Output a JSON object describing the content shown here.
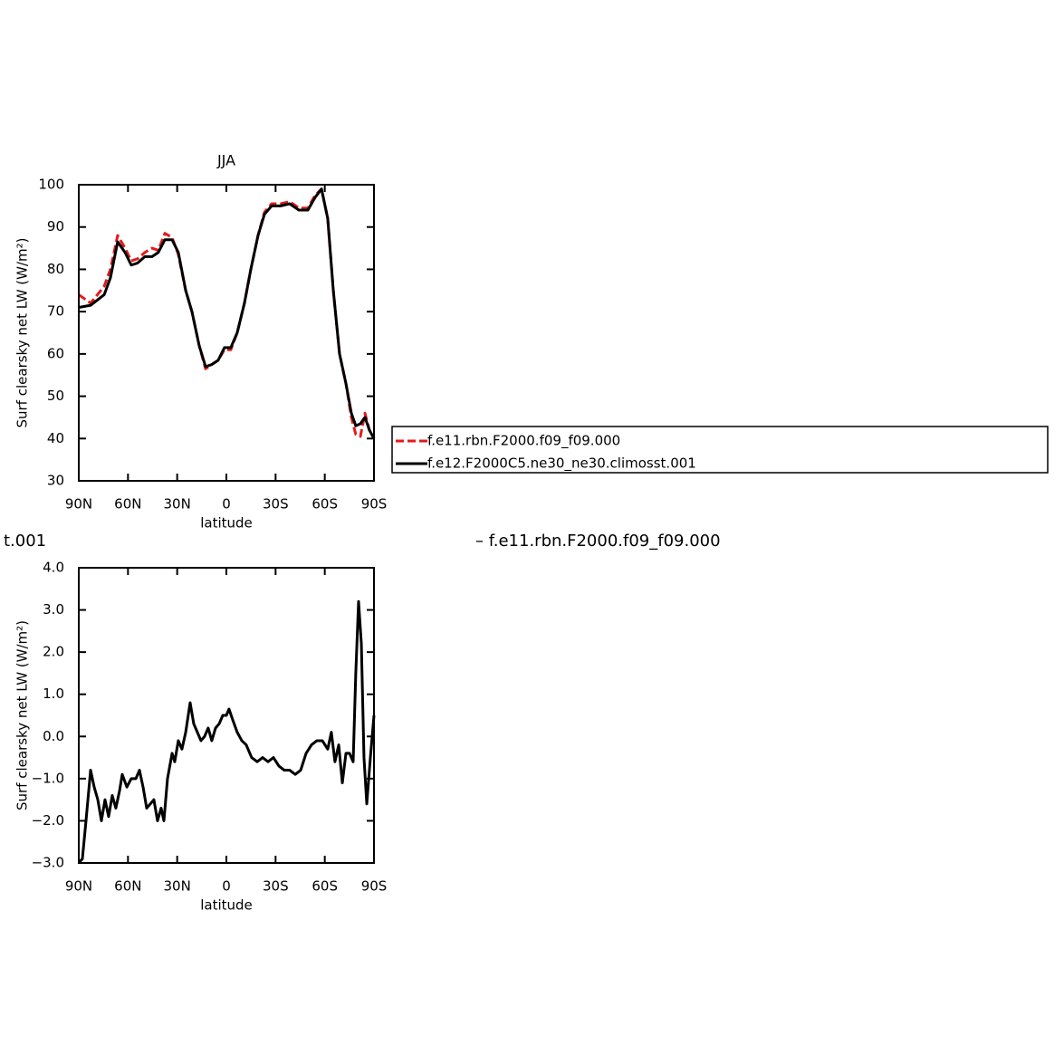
{
  "chart_data": [
    {
      "type": "line",
      "title": "JJA",
      "xlabel": "latitude",
      "ylabel": "Surf clearsky net LW (W/m²)",
      "xlim": [
        90,
        -90
      ],
      "ylim": [
        30,
        100
      ],
      "xticks": [
        {
          "value": 90,
          "label": "90N"
        },
        {
          "value": 60,
          "label": "60N"
        },
        {
          "value": 30,
          "label": "30N"
        },
        0,
        {
          "value": -30,
          "label": "30S"
        },
        {
          "value": -60,
          "label": "60S"
        },
        {
          "value": -90,
          "label": "90S"
        }
      ],
      "yticks": [
        30,
        40,
        50,
        60,
        70,
        80,
        90,
        100
      ],
      "x": [
        90,
        82.8,
        74.5,
        70.7,
        66.3,
        61.8,
        58.0,
        54.1,
        49.7,
        45.3,
        41.5,
        37.5,
        33.1,
        29.3,
        24.8,
        21.0,
        16.6,
        12.7,
        8.9,
        5.0,
        1.2,
        -2.7,
        -6.6,
        -11.0,
        -14.9,
        -19.3,
        -23.2,
        -27.6,
        -33.1,
        -38.6,
        -44.2,
        -49.7,
        -54.1,
        -58.0,
        -61.8,
        -65.2,
        -69.0,
        -72.9,
        -76.2,
        -78.9,
        -81.7,
        -84.5,
        -87.2,
        -90
      ],
      "series": [
        {
          "name": "f.e11.rbn.F2000.f09_f09.000",
          "color": "#e41a1c",
          "dash": true,
          "values": [
            74,
            72,
            76,
            80,
            88,
            85,
            82,
            82.5,
            84,
            85,
            84.5,
            88.5,
            87.5,
            83.5,
            75,
            70,
            62,
            56.5,
            57.5,
            58.5,
            61,
            61,
            65,
            72,
            80,
            88,
            93.5,
            95.5,
            95.5,
            96,
            94.5,
            94.5,
            97.5,
            99,
            92,
            75,
            60,
            53,
            45,
            41,
            40.5,
            46,
            42,
            40
          ]
        },
        {
          "name": "f.e12.F2000C5.ne30_ne30.climosst.001",
          "color": "#000000",
          "dash": false,
          "values": [
            71,
            71.5,
            74,
            78,
            86.5,
            84,
            81,
            81.5,
            83,
            83,
            84,
            87,
            87,
            84,
            75,
            70,
            62,
            57,
            57.5,
            58.5,
            61.5,
            61.5,
            65,
            72,
            80,
            88,
            93,
            95,
            95,
            95.5,
            94,
            94,
            97,
            99,
            92,
            75,
            60,
            53,
            46,
            43,
            43.5,
            45,
            42,
            40
          ]
        }
      ]
    },
    {
      "type": "line",
      "xlabel": "latitude",
      "ylabel": "Surf clearsky net LW (W/m²)",
      "annotations": [
        "t.001",
        "– f.e11.rbn.F2000.f09_f09.000"
      ],
      "xlim": [
        90,
        -90
      ],
      "ylim": [
        -3,
        4
      ],
      "xticks": [
        {
          "value": 90,
          "label": "90N"
        },
        {
          "value": 60,
          "label": "60N"
        },
        {
          "value": 30,
          "label": "30N"
        },
        0,
        {
          "value": -30,
          "label": "30S"
        },
        {
          "value": -60,
          "label": "60S"
        },
        {
          "value": -90,
          "label": "90S"
        }
      ],
      "yticks": [
        {
          "value": -3,
          "label": "−3.0"
        },
        {
          "value": -2,
          "label": "−2.0"
        },
        {
          "value": -1,
          "label": "−1.0"
        },
        {
          "value": 0,
          "label": "0.0"
        },
        {
          "value": 1,
          "label": "1.0"
        },
        {
          "value": 2,
          "label": "2.0"
        },
        {
          "value": 3,
          "label": "3.0"
        },
        {
          "value": 4,
          "label": "4.0"
        }
      ],
      "x": [
        90,
        87.8,
        85.6,
        82.8,
        80.6,
        78.4,
        76.2,
        74.0,
        71.8,
        69.6,
        67.4,
        65.2,
        63.5,
        60.7,
        58.0,
        55.2,
        53.0,
        50.8,
        48.6,
        46.4,
        44.2,
        42.0,
        39.8,
        38.1,
        35.9,
        33.1,
        31.5,
        29.3,
        27.1,
        24.8,
        22.1,
        19.9,
        17.7,
        15.5,
        13.3,
        11.1,
        8.9,
        6.6,
        4.4,
        2.2,
        0.0,
        -1.6,
        -3.8,
        -6.6,
        -9.4,
        -12.1,
        -15.4,
        -18.8,
        -22.1,
        -25.4,
        -28.7,
        -32.0,
        -35.3,
        -38.6,
        -42.0,
        -45.3,
        -48.6,
        -51.9,
        -55.2,
        -58.5,
        -61.8,
        -64.0,
        -66.2,
        -68.5,
        -70.7,
        -72.9,
        -75.1,
        -77.3,
        -78.9,
        -80.6,
        -82.3,
        -83.9,
        -85.6,
        -87.8,
        -90
      ],
      "series": [
        {
          "color": "#000000",
          "dash": false,
          "values": [
            -3.0,
            -2.9,
            -2.0,
            -0.8,
            -1.2,
            -1.5,
            -2.0,
            -1.5,
            -1.9,
            -1.4,
            -1.7,
            -1.3,
            -0.9,
            -1.2,
            -1.0,
            -1.0,
            -0.8,
            -1.2,
            -1.7,
            -1.6,
            -1.5,
            -2.0,
            -1.7,
            -2.0,
            -1.0,
            -0.4,
            -0.6,
            -0.1,
            -0.3,
            0.1,
            0.8,
            0.3,
            0.1,
            -0.1,
            0.0,
            0.2,
            -0.1,
            0.2,
            0.3,
            0.5,
            0.5,
            0.65,
            0.4,
            0.1,
            -0.1,
            -0.2,
            -0.5,
            -0.6,
            -0.5,
            -0.6,
            -0.5,
            -0.7,
            -0.8,
            -0.8,
            -0.9,
            -0.8,
            -0.4,
            -0.2,
            -0.1,
            -0.1,
            -0.3,
            0.1,
            -0.6,
            -0.2,
            -1.1,
            -0.4,
            -0.4,
            -0.6,
            1.5,
            3.2,
            2.2,
            -0.5,
            -1.6,
            -0.5,
            0.5
          ]
        }
      ]
    }
  ]
}
